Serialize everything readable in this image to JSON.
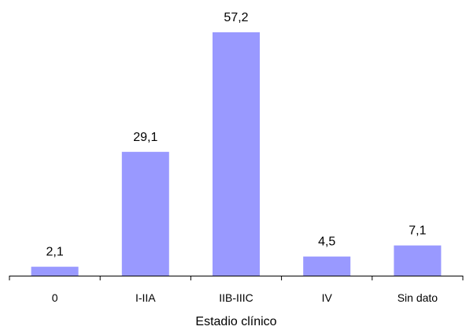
{
  "chart_data": {
    "type": "bar",
    "title": "",
    "xlabel": "Estadio clínico",
    "ylabel": "",
    "categories": [
      "0",
      "I-IIA",
      "IIB-IIIC",
      "IV",
      "Sin dato"
    ],
    "values": [
      2.1,
      29.1,
      57.2,
      4.5,
      7.1
    ],
    "value_labels": [
      "2,1",
      "29,1",
      "57,2",
      "4,5",
      "7,1"
    ],
    "ylim": [
      0,
      57.2
    ],
    "grid": false,
    "legend": "none",
    "bar_color": "#9999ff"
  }
}
